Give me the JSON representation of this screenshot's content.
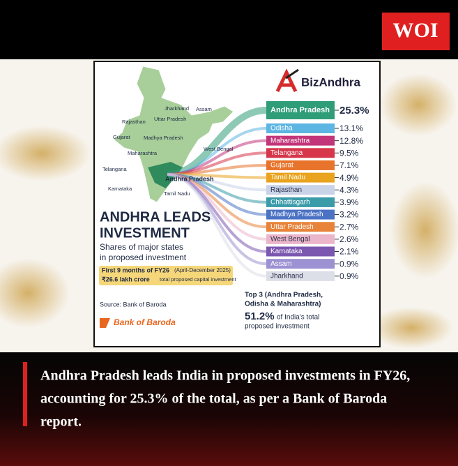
{
  "header": {
    "logo": "WOI"
  },
  "infographic": {
    "brand": "BizAndhra",
    "title_lines": [
      "ANDHRA LEADS",
      "INVESTMENT"
    ],
    "subtitle_lines": [
      "Shares of major states",
      "in proposed investment"
    ],
    "period": "First 9 months of FY26",
    "period_range": "(April-December 2025)",
    "amount": "₹26.6 lakh crore",
    "amount_note": "total proposed capital investment",
    "source": "Source: Bank of Baroda",
    "bank_logo": "Bank of Baroda",
    "map_labels": [
      "Jharkhand",
      "Assam",
      "Uttar Pradesh",
      "Rajasthan",
      "Gujarat",
      "Madhya Pradesh",
      "Maharashtra",
      "West Bengal",
      "Telangana",
      "Andhra Pradesh",
      "Karnataka",
      "Tamil Nadu"
    ],
    "states": [
      {
        "name": "Andhra Pradesh",
        "share": "25.3%",
        "color": "#2f9d78"
      },
      {
        "name": "Odisha",
        "share": "13.1%",
        "color": "#5cb5e2"
      },
      {
        "name": "Maharashtra",
        "share": "12.8%",
        "color": "#c2357a"
      },
      {
        "name": "Telangana",
        "share": "9.5%",
        "color": "#d6354a"
      },
      {
        "name": "Gujarat",
        "share": "7.1%",
        "color": "#e8732a"
      },
      {
        "name": "Tamil Nadu",
        "share": "4.9%",
        "color": "#e9a31f"
      },
      {
        "name": "Rajasthan",
        "share": "4.3%",
        "color": "#c9d3e8"
      },
      {
        "name": "Chhattisgarh",
        "share": "3.9%",
        "color": "#3a9ba9"
      },
      {
        "name": "Madhya Pradesh",
        "share": "3.2%",
        "color": "#4b72c4"
      },
      {
        "name": "Uttar Pradesh",
        "share": "2.7%",
        "color": "#e8833a"
      },
      {
        "name": "West Bengal",
        "share": "2.6%",
        "color": "#ebb6ca"
      },
      {
        "name": "Karnataka",
        "share": "2.1%",
        "color": "#7b57b0"
      },
      {
        "name": "Assam",
        "share": "0.9%",
        "color": "#9c91d2"
      },
      {
        "name": "Jharkhand",
        "share": "0.9%",
        "color": "#dcdee8"
      }
    ],
    "top3_lines": [
      "Top 3 (Andhra Pradesh,",
      "Odisha & Maharashtra)"
    ],
    "top3_share": "51.2%",
    "top3_note": "of India's total",
    "top3_note2": "proposed investment"
  },
  "caption_lines": [
    "Andhra Pradesh leads India in proposed investments in FY26,",
    "accounting for 25.3% of  the total, as per a Bank of  Baroda",
    "report."
  ]
}
